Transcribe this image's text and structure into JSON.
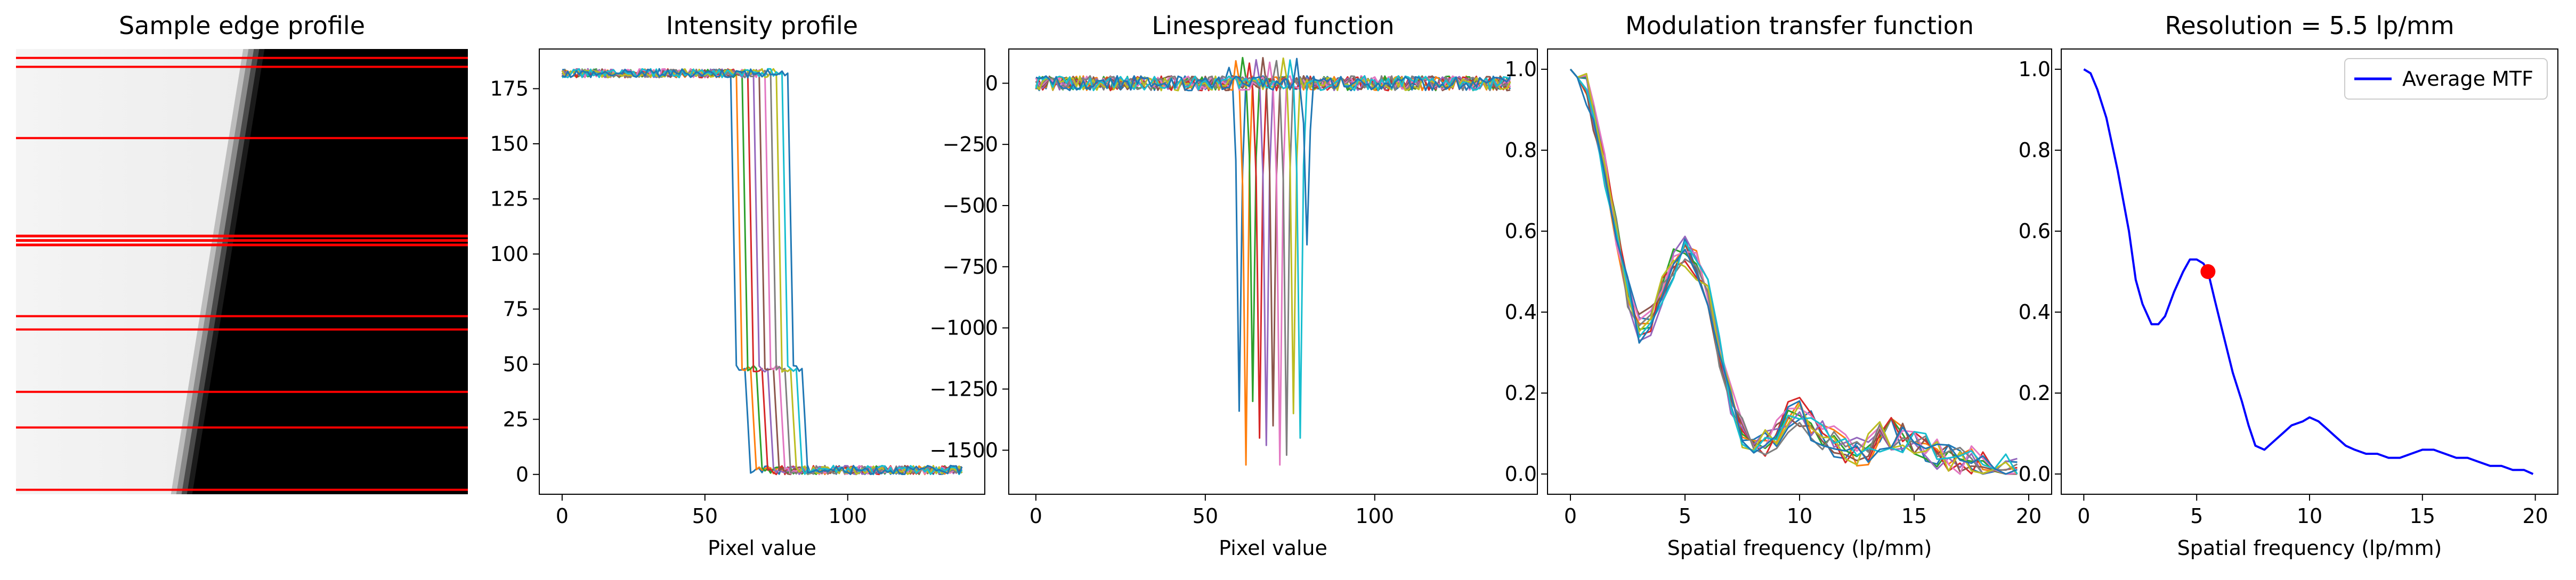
{
  "figure": {
    "colors": {
      "red_line": "#ff0000",
      "avg_mtf": "#0000ff",
      "marker": "#ff0000",
      "tab10": [
        "#1f77b4",
        "#ff7f0e",
        "#2ca02c",
        "#d62728",
        "#9467bd",
        "#8c564b",
        "#e377c2",
        "#7f7f7f",
        "#bcbd22",
        "#17becf"
      ]
    }
  },
  "chart_data": [
    {
      "type": "image",
      "title": "Sample edge profile",
      "description_marks": "grayscale edge image with horizontal red sample lines",
      "sample_rows_fraction": [
        0.02,
        0.04,
        0.2,
        0.42,
        0.43,
        0.44,
        0.6,
        0.63,
        0.77,
        0.85,
        0.99
      ]
    },
    {
      "type": "line",
      "title": "Intensity profile",
      "xlabel": "Pixel value",
      "ylabel": "",
      "xlim": [
        -8,
        148
      ],
      "ylim": [
        -9,
        193
      ],
      "xticks": [
        0,
        50,
        100
      ],
      "yticks": [
        0,
        25,
        50,
        75,
        100,
        125,
        150,
        175
      ],
      "series_count": 11,
      "edge_x": [
        60,
        62,
        64,
        66,
        68,
        70,
        72,
        74,
        76,
        78,
        80
      ],
      "plateau_high": 182,
      "plateau_low": 2,
      "shoulder_value": 48,
      "x_max": 140
    },
    {
      "type": "line",
      "title": "Linespread function",
      "xlabel": "Pixel value",
      "ylabel": "",
      "xlim": [
        -8,
        148
      ],
      "ylim": [
        -1680,
        140
      ],
      "xticks": [
        0,
        50,
        100
      ],
      "yticks": [
        0,
        -250,
        -500,
        -750,
        -1000,
        -1250,
        -1500
      ],
      "series_count": 11,
      "edge_x": [
        60,
        62,
        64,
        66,
        68,
        70,
        72,
        74,
        76,
        78,
        80
      ],
      "peak_values": [
        -1340,
        -1560,
        -1300,
        -1450,
        -1480,
        -1400,
        -1560,
        -1520,
        -1350,
        -1450,
        -660
      ],
      "x_max": 140
    },
    {
      "type": "line",
      "title": "Modulation transfer function",
      "xlabel": "Spatial frequency (lp/mm)",
      "ylabel": "",
      "xlim": [
        -1,
        21
      ],
      "ylim": [
        -0.05,
        1.05
      ],
      "xticks": [
        0,
        5,
        10,
        15,
        20
      ],
      "yticks": [
        0.0,
        0.2,
        0.4,
        0.6,
        0.8,
        1.0
      ],
      "series_count": 11,
      "base_curve": {
        "x": [
          0,
          0.3,
          0.7,
          1.0,
          1.5,
          2.0,
          2.5,
          3.0,
          3.5,
          4.0,
          4.5,
          5.0,
          5.5,
          6.0,
          6.5,
          7.0,
          7.5,
          8.0,
          8.5,
          9.0,
          9.5,
          10.0,
          10.5,
          11.0,
          11.5,
          12.0,
          12.5,
          13.0,
          13.5,
          14.0,
          14.5,
          15.0,
          15.5,
          16.0,
          16.5,
          17.0,
          17.5,
          18.0,
          18.5,
          19.0,
          19.5
        ],
        "y": [
          1.0,
          0.98,
          0.95,
          0.88,
          0.75,
          0.6,
          0.45,
          0.36,
          0.38,
          0.45,
          0.52,
          0.55,
          0.52,
          0.45,
          0.3,
          0.18,
          0.1,
          0.06,
          0.07,
          0.1,
          0.14,
          0.15,
          0.12,
          0.1,
          0.08,
          0.06,
          0.05,
          0.06,
          0.09,
          0.1,
          0.09,
          0.08,
          0.06,
          0.05,
          0.04,
          0.03,
          0.03,
          0.02,
          0.01,
          0.01,
          0.0
        ]
      }
    },
    {
      "type": "line",
      "title": "Resolution = 5.5 lp/mm",
      "xlabel": "Spatial frequency (lp/mm)",
      "ylabel": "",
      "xlim": [
        -1,
        21
      ],
      "ylim": [
        -0.05,
        1.05
      ],
      "xticks": [
        0,
        5,
        10,
        15,
        20
      ],
      "yticks": [
        0.0,
        0.2,
        0.4,
        0.6,
        0.8,
        1.0
      ],
      "legend": "top-right",
      "series": [
        {
          "name": "Average MTF",
          "x": [
            0,
            0.3,
            0.6,
            1.0,
            1.5,
            2.0,
            2.3,
            2.6,
            3.0,
            3.3,
            3.6,
            4.0,
            4.4,
            4.7,
            5.0,
            5.3,
            5.5,
            5.8,
            6.2,
            6.6,
            7.0,
            7.3,
            7.6,
            8.0,
            8.4,
            8.8,
            9.2,
            9.7,
            10.0,
            10.4,
            10.8,
            11.2,
            11.6,
            12.0,
            12.5,
            13.0,
            13.5,
            14.0,
            14.5,
            15.0,
            15.5,
            16.0,
            16.5,
            17.0,
            17.5,
            18.0,
            18.5,
            19.0,
            19.5,
            19.9
          ],
          "y": [
            1.0,
            0.99,
            0.95,
            0.88,
            0.75,
            0.6,
            0.48,
            0.42,
            0.37,
            0.37,
            0.39,
            0.45,
            0.5,
            0.53,
            0.53,
            0.52,
            0.5,
            0.43,
            0.34,
            0.25,
            0.18,
            0.12,
            0.07,
            0.06,
            0.08,
            0.1,
            0.12,
            0.13,
            0.14,
            0.13,
            0.11,
            0.09,
            0.07,
            0.06,
            0.05,
            0.05,
            0.04,
            0.04,
            0.05,
            0.06,
            0.06,
            0.05,
            0.04,
            0.04,
            0.03,
            0.02,
            0.02,
            0.01,
            0.01,
            0.0
          ]
        }
      ],
      "marker": {
        "x": 5.5,
        "y": 0.5
      }
    }
  ]
}
